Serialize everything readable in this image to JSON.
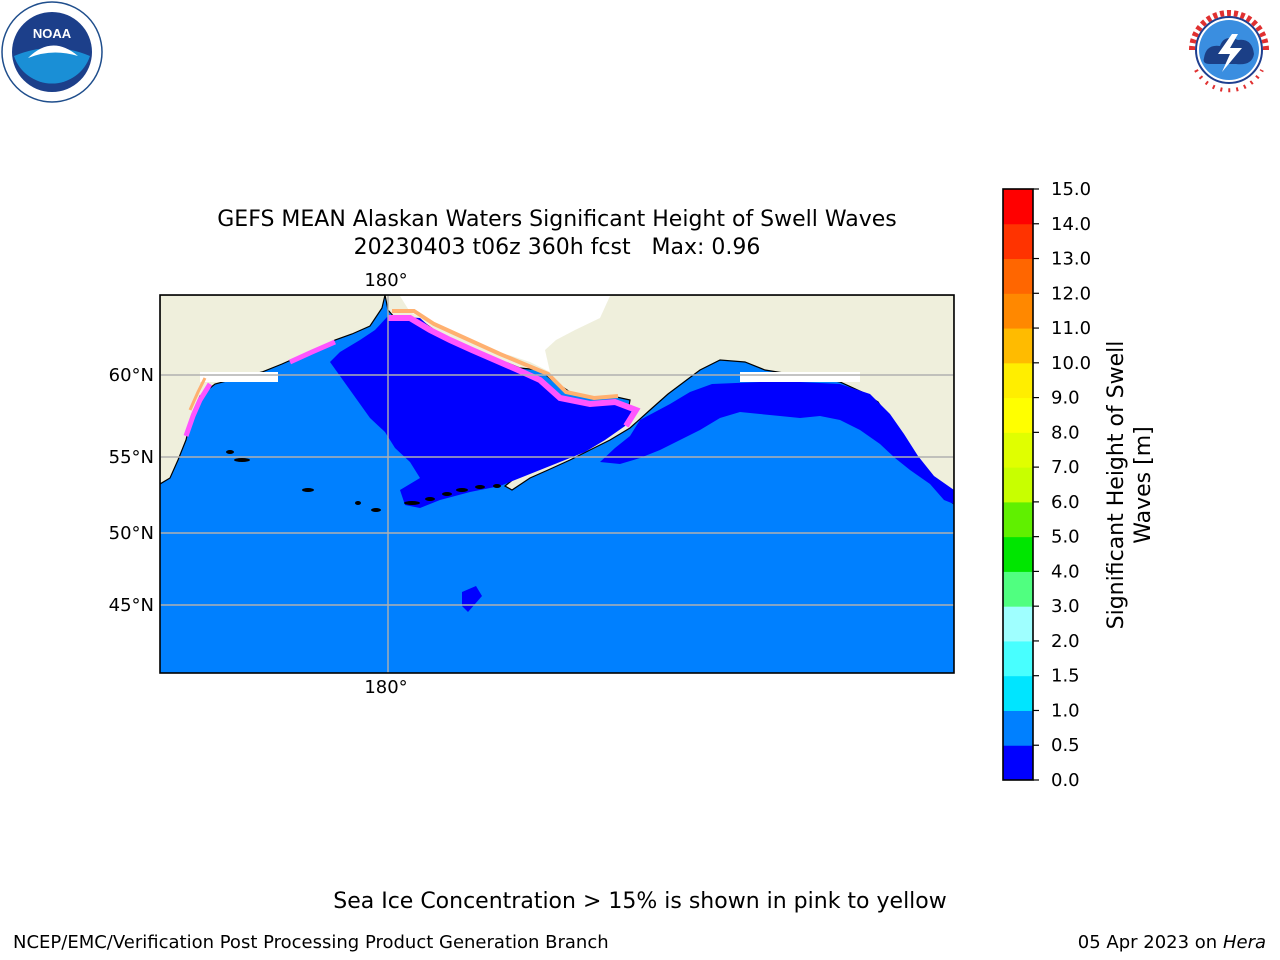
{
  "logos": {
    "left": {
      "name": "noaa-logo",
      "text": "NOAA",
      "ring_text": "NATIONAL OCEANIC AND ATMOSPHERIC ADMINISTRATION · U.S. DEPARTMENT OF COMMERCE"
    },
    "right": {
      "name": "nws-logo",
      "ring_text": "NATIONAL WEATHER SERVICE"
    }
  },
  "title": {
    "line1": "GEFS MEAN Alaskan Waters Significant Height of Swell Waves",
    "line2": "20230403 t06z 360h fcst   Max: 0.96"
  },
  "map": {
    "region": "Alaskan Waters",
    "lat_labels": [
      "60°N",
      "55°N",
      "50°N",
      "45°N"
    ],
    "lon_labels": [
      "180°",
      "180°"
    ],
    "colors": {
      "land": "#efefdc",
      "ice_free_water_low": "#0000ff",
      "water_mid": "#0080ff",
      "gridline": "#b0b0b0"
    }
  },
  "colorbar": {
    "label": "Significant Height of Swell Waves [m]",
    "label_line1": "Significant Height of Swell",
    "label_line2": "Waves [m]",
    "ticks": [
      "15.0",
      "14.0",
      "13.0",
      "12.0",
      "11.0",
      "10.0",
      "9.0",
      "8.0",
      "7.0",
      "6.0",
      "5.0",
      "4.0",
      "3.0",
      "2.0",
      "1.5",
      "1.0",
      "0.5",
      "0.0"
    ],
    "bins": [
      {
        "range": "0.0-0.5",
        "color": "#0000ff"
      },
      {
        "range": "0.5-1.0",
        "color": "#0080ff"
      },
      {
        "range": "1.0-1.5",
        "color": "#00e5ff"
      },
      {
        "range": "1.5-2.0",
        "color": "#48ffff"
      },
      {
        "range": "2.0-3.0",
        "color": "#9fffff"
      },
      {
        "range": "3.0-4.0",
        "color": "#50ff80"
      },
      {
        "range": "4.0-5.0",
        "color": "#00e600"
      },
      {
        "range": "5.0-6.0",
        "color": "#60f000"
      },
      {
        "range": "6.0-7.0",
        "color": "#c8ff00"
      },
      {
        "range": "7.0-8.0",
        "color": "#e0ff00"
      },
      {
        "range": "8.0-9.0",
        "color": "#ffff00"
      },
      {
        "range": "9.0-10.0",
        "color": "#ffee00"
      },
      {
        "range": "10.0-11.0",
        "color": "#ffbb00"
      },
      {
        "range": "11.0-12.0",
        "color": "#ff8800"
      },
      {
        "range": "12.0-13.0",
        "color": "#ff6600"
      },
      {
        "range": "13.0-14.0",
        "color": "#ff3300"
      },
      {
        "range": "14.0-15.0",
        "color": "#ff0000"
      }
    ]
  },
  "footer": {
    "note": "Sea Ice Concentration > 15% is shown in pink to yellow",
    "credit_left": "NCEP/EMC/Verification Post Processing Product Generation Branch",
    "credit_right_date": "05 Apr 2023 on",
    "credit_right_machine": "Hera"
  }
}
